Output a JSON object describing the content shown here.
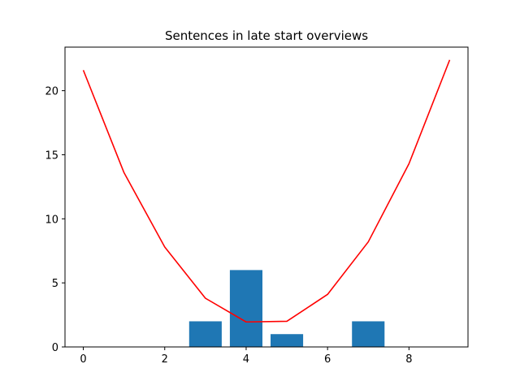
{
  "chart_data": {
    "type": "bar",
    "title": "Sentences in late start overviews",
    "xlabel": "",
    "ylabel": "",
    "xlim": [
      -0.45,
      9.45
    ],
    "ylim": [
      0,
      23.4
    ],
    "x_ticks": [
      0,
      2,
      4,
      6,
      8
    ],
    "y_ticks": [
      0,
      5,
      10,
      15,
      20
    ],
    "grid": false,
    "bar_color": "#1f77b4",
    "line_color": "#ff0000",
    "bars": {
      "x": [
        0,
        1,
        2,
        3,
        4,
        5,
        6,
        7,
        8,
        9
      ],
      "values": [
        0,
        0,
        0,
        2,
        6,
        1,
        0,
        2,
        0,
        0
      ],
      "width": 0.8
    },
    "line": {
      "x": [
        0,
        1,
        2,
        3,
        4,
        5,
        6,
        7,
        8,
        9
      ],
      "values": [
        21.6,
        13.6,
        7.8,
        3.8,
        1.95,
        2.0,
        4.1,
        8.2,
        14.3,
        22.4
      ]
    }
  }
}
